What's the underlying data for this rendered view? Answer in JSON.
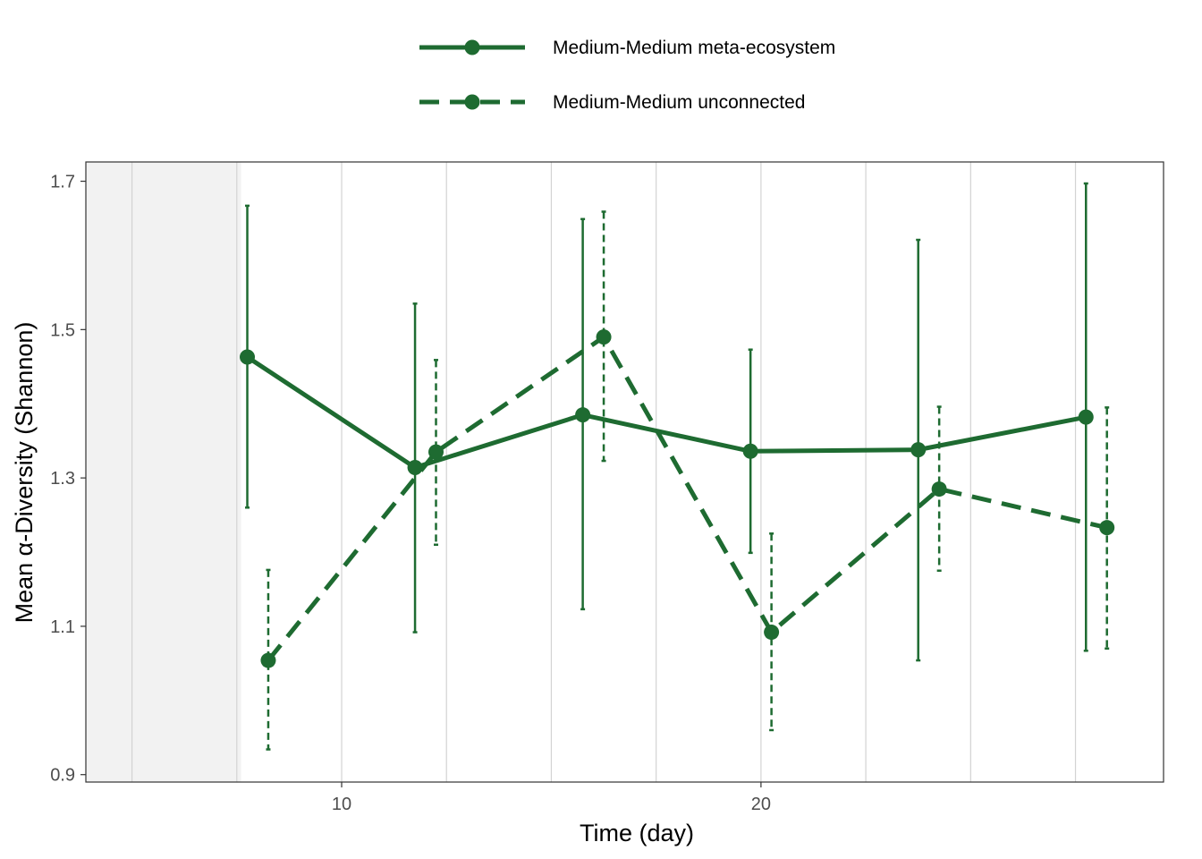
{
  "chart_data": {
    "type": "line",
    "xlabel": "Time (day)",
    "ylabel": "Mean α-Diversity (Shannon)",
    "xlim": [
      3.9,
      29.6
    ],
    "ylim": [
      0.89,
      1.726
    ],
    "x_ticks": [
      10,
      20
    ],
    "y_ticks": [
      0.9,
      1.1,
      1.3,
      1.5,
      1.7
    ],
    "shaded_region": {
      "x_start": 3.9,
      "x_end": 7.6,
      "color": "#f2f2f2"
    },
    "grid": true,
    "legend_position": "top",
    "colors": {
      "series": "#1e6b31",
      "grid": "#d3d3d3",
      "border": "#333333"
    },
    "series": [
      {
        "name": "Medium-Medium meta-ecosystem",
        "style": "solid",
        "points": [
          {
            "x": 7.75,
            "y": 1.463,
            "low": 1.26,
            "high": 1.667
          },
          {
            "x": 11.75,
            "y": 1.314,
            "low": 1.092,
            "high": 1.535
          },
          {
            "x": 15.75,
            "y": 1.385,
            "low": 1.123,
            "high": 1.649
          },
          {
            "x": 19.75,
            "y": 1.336,
            "low": 1.199,
            "high": 1.473
          },
          {
            "x": 23.75,
            "y": 1.338,
            "low": 1.054,
            "high": 1.621
          },
          {
            "x": 27.75,
            "y": 1.382,
            "low": 1.067,
            "high": 1.697
          }
        ]
      },
      {
        "name": "Medium-Medium unconnected",
        "style": "dashed",
        "points": [
          {
            "x": 8.25,
            "y": 1.054,
            "low": 0.934,
            "high": 1.176
          },
          {
            "x": 12.25,
            "y": 1.335,
            "low": 1.21,
            "high": 1.459
          },
          {
            "x": 16.25,
            "y": 1.49,
            "low": 1.323,
            "high": 1.659
          },
          {
            "x": 20.25,
            "y": 1.092,
            "low": 0.96,
            "high": 1.225
          },
          {
            "x": 24.25,
            "y": 1.285,
            "low": 1.175,
            "high": 1.396
          },
          {
            "x": 28.25,
            "y": 1.233,
            "low": 1.07,
            "high": 1.395
          }
        ]
      }
    ]
  }
}
